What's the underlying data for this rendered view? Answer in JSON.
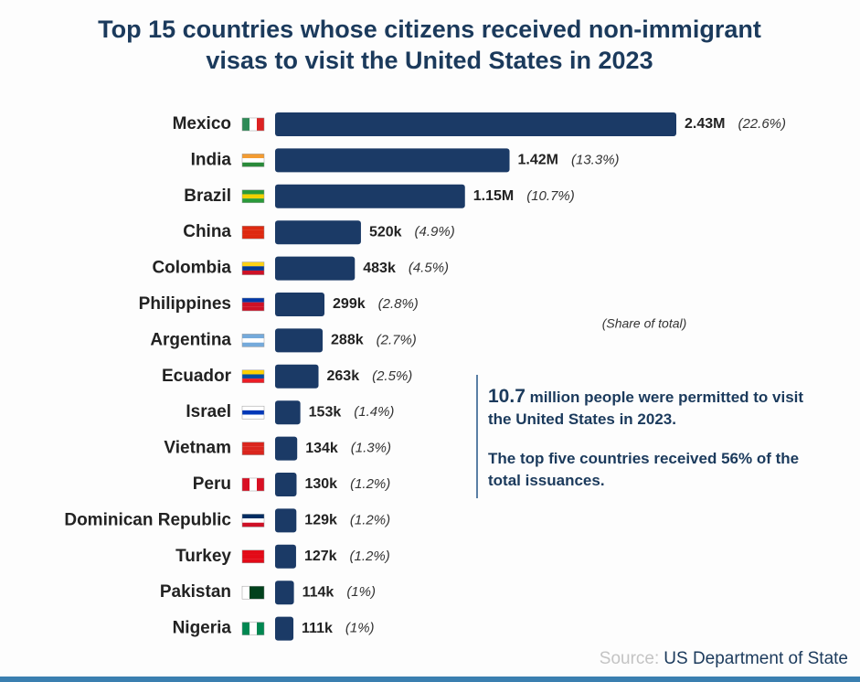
{
  "chart_data": {
    "type": "bar",
    "orientation": "horizontal",
    "title": [
      "Top 15 countries whose citizens received non-immigrant",
      "visas to visit the United States in 2023"
    ],
    "categories": [
      "Mexico",
      "India",
      "Brazil",
      "China",
      "Colombia",
      "Philippines",
      "Argentina",
      "Ecuador",
      "Israel",
      "Vietnam",
      "Peru",
      "Dominican Republic",
      "Turkey",
      "Pakistan",
      "Nigeria"
    ],
    "values": [
      2430000,
      1420000,
      1150000,
      520000,
      483000,
      299000,
      288000,
      263000,
      153000,
      134000,
      130000,
      129000,
      127000,
      114000,
      111000
    ],
    "value_labels": [
      "2.43M",
      "1.42M",
      "1.15M",
      "520k",
      "483k",
      "299k",
      "288k",
      "263k",
      "153k",
      "134k",
      "130k",
      "129k",
      "127k",
      "114k",
      "111k"
    ],
    "share_labels": [
      "(22.6%)",
      "(13.3%)",
      "(10.7%)",
      "(4.9%)",
      "(4.5%)",
      "(2.8%)",
      "(2.7%)",
      "(2.5%)",
      "(1.4%)",
      "(1.3%)",
      "(1.2%)",
      "(1.2%)",
      "(1.2%)",
      "(1%)",
      "(1%)"
    ],
    "share_note": "(Share of total)",
    "color": "#1b3a66",
    "callout": {
      "highlight": "10.7",
      "text": " million people were permitted to visit the United States in 2023.",
      "text2": "The top five countries received 56% of the total issuances."
    },
    "source": {
      "label": "Source:",
      "text": "US Department of State"
    }
  }
}
